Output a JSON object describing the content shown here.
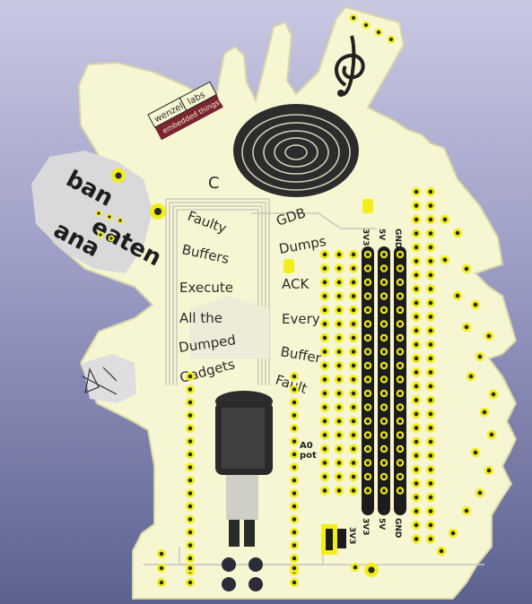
{
  "colors": {
    "board": "#f7f6d2",
    "board_edge": "#d8d6a8",
    "copper_zone": "#d9d9dc",
    "pad": "#f2ee1a",
    "pad_hole": "#2a2a2a",
    "rail": "#1c1c1c",
    "silk": "#2b2b2b",
    "background_top": "#c9c8e3",
    "background_bottom": "#5c6290"
  },
  "logo": {
    "line1": "wenzel",
    "line2": "labs",
    "line3": "embedded things!"
  },
  "side_text": [
    "ban",
    "eaten",
    "ana"
  ],
  "left_words": [
    "Faulty",
    "Buffers",
    "Execute",
    "All the",
    "Dumped",
    "Gadgets"
  ],
  "right_words": [
    "GDB",
    "Dumps",
    "ACK",
    "Every",
    "Buffer",
    "Fault"
  ],
  "rail_labels_top": [
    "3V3",
    "5V",
    "GND"
  ],
  "rail_labels_bottom": [
    "3V3",
    "5V",
    "GND"
  ],
  "pot_label": "A0\npot",
  "pot_label_line1": "A0",
  "pot_label_line2": "pot",
  "switch_label": "3V3",
  "c_label": "C",
  "icons": {
    "fingerprint": "fingerprint-icon",
    "treble": "treble-clef-icon",
    "person": "hooded-figure-icon",
    "arrow": "arrow-sketch-icon"
  }
}
